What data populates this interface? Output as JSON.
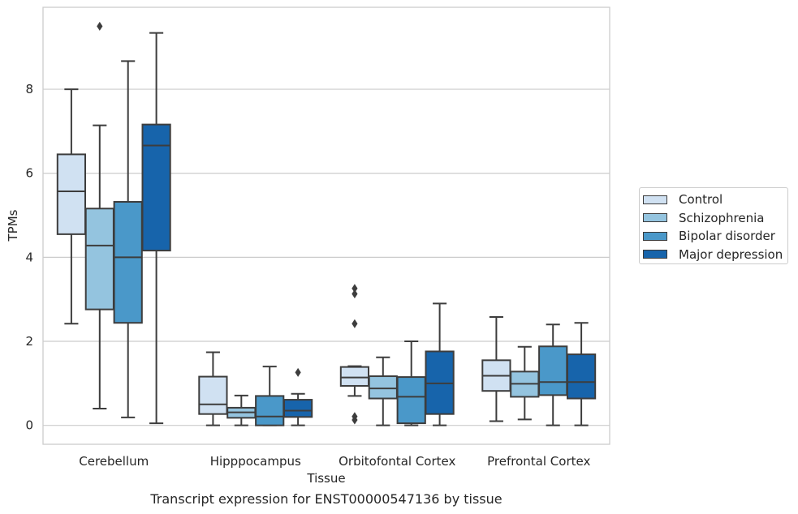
{
  "caption": "Transcript expression for ENST00000547136 by tissue",
  "chart_data": {
    "type": "box",
    "xlabel": "Tissue",
    "ylabel": "TPMs",
    "ylim": [
      -0.45,
      9.95
    ],
    "yticks": [
      0,
      2,
      4,
      6,
      8
    ],
    "grid": "horizontal",
    "legend_position": "right",
    "categories": [
      "Cerebellum",
      "Hipppocampus",
      "Orbitofontal Cortex",
      "Prefrontal Cortex"
    ],
    "series": [
      {
        "name": "Control",
        "color": "#d0e1f2",
        "boxes": [
          {
            "q1": 4.55,
            "median": 5.57,
            "q3": 6.45,
            "whisker_low": 2.42,
            "whisker_high": 8.0,
            "outliers": []
          },
          {
            "q1": 0.27,
            "median": 0.5,
            "q3": 1.16,
            "whisker_low": 0.0,
            "whisker_high": 1.74,
            "outliers": []
          },
          {
            "q1": 0.94,
            "median": 1.14,
            "q3": 1.39,
            "whisker_low": 0.7,
            "whisker_high": 1.41,
            "outliers": [
              3.26,
              3.13,
              2.42,
              0.21,
              0.13
            ]
          },
          {
            "q1": 0.82,
            "median": 1.18,
            "q3": 1.55,
            "whisker_low": 0.1,
            "whisker_high": 2.58,
            "outliers": []
          }
        ]
      },
      {
        "name": "Schizophrenia",
        "color": "#94c4df",
        "boxes": [
          {
            "q1": 2.76,
            "median": 4.28,
            "q3": 5.16,
            "whisker_low": 0.4,
            "whisker_high": 7.14,
            "outliers": [
              9.5
            ]
          },
          {
            "q1": 0.18,
            "median": 0.31,
            "q3": 0.42,
            "whisker_low": 0.0,
            "whisker_high": 0.71,
            "outliers": []
          },
          {
            "q1": 0.64,
            "median": 0.88,
            "q3": 1.17,
            "whisker_low": 0.0,
            "whisker_high": 1.62,
            "outliers": []
          },
          {
            "q1": 0.68,
            "median": 0.99,
            "q3": 1.28,
            "whisker_low": 0.14,
            "whisker_high": 1.87,
            "outliers": []
          }
        ]
      },
      {
        "name": "Bipolar disorder",
        "color": "#4a98c9",
        "boxes": [
          {
            "q1": 2.44,
            "median": 4.0,
            "q3": 5.32,
            "whisker_low": 0.19,
            "whisker_high": 8.67,
            "outliers": []
          },
          {
            "q1": 0.0,
            "median": 0.21,
            "q3": 0.7,
            "whisker_low": 0.0,
            "whisker_high": 1.4,
            "outliers": []
          },
          {
            "q1": 0.05,
            "median": 0.68,
            "q3": 1.15,
            "whisker_low": 0.0,
            "whisker_high": 2.0,
            "outliers": []
          },
          {
            "q1": 0.72,
            "median": 1.03,
            "q3": 1.88,
            "whisker_low": 0.0,
            "whisker_high": 2.4,
            "outliers": []
          }
        ]
      },
      {
        "name": "Major depression",
        "color": "#1764ab",
        "boxes": [
          {
            "q1": 4.16,
            "median": 6.66,
            "q3": 7.16,
            "whisker_low": 0.05,
            "whisker_high": 9.34,
            "outliers": []
          },
          {
            "q1": 0.2,
            "median": 0.35,
            "q3": 0.61,
            "whisker_low": 0.0,
            "whisker_high": 0.75,
            "outliers": [
              1.26
            ]
          },
          {
            "q1": 0.27,
            "median": 1.0,
            "q3": 1.76,
            "whisker_low": 0.0,
            "whisker_high": 2.9,
            "outliers": []
          },
          {
            "q1": 0.64,
            "median": 1.03,
            "q3": 1.69,
            "whisker_low": 0.0,
            "whisker_high": 2.44,
            "outliers": []
          }
        ]
      }
    ]
  }
}
